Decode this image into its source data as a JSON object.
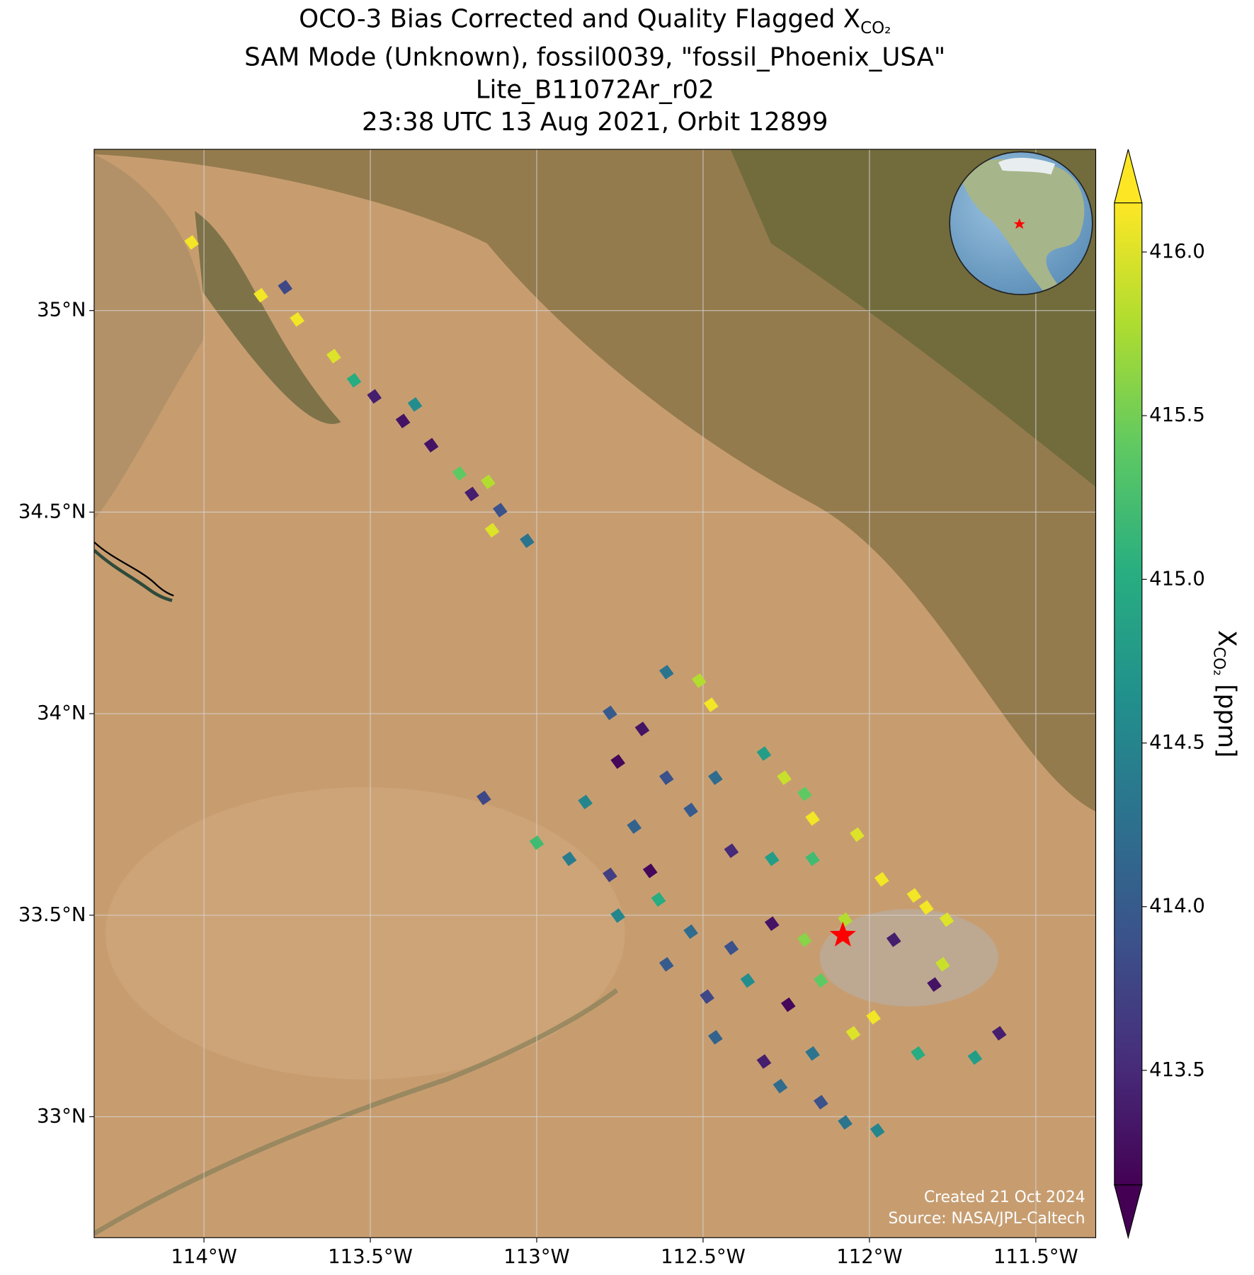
{
  "chart_data": {
    "type": "map",
    "title_lines": [
      "OCO-3 Bias Corrected and Quality Flagged X",
      "SAM Mode (Unknown), fossil0039, \"fossil_Phoenix_USA\"",
      "Lite_B11072Ar_r02",
      "23:38 UTC 13 Aug 2021, Orbit 12899"
    ],
    "title_subscript": "CO₂",
    "xlim": [
      -114.33,
      -111.32
    ],
    "ylim": [
      32.7,
      35.4
    ],
    "xticks": [
      {
        "value": -114,
        "label": "114°W"
      },
      {
        "value": -113.5,
        "label": "113.5°W"
      },
      {
        "value": -113,
        "label": "113°W"
      },
      {
        "value": -112.5,
        "label": "112.5°W"
      },
      {
        "value": -112,
        "label": "112°W"
      },
      {
        "value": -111.5,
        "label": "111.5°W"
      }
    ],
    "yticks": [
      {
        "value": 35,
        "label": "35°N"
      },
      {
        "value": 34.5,
        "label": "34.5°N"
      },
      {
        "value": 34,
        "label": "34°N"
      },
      {
        "value": 33.5,
        "label": "33.5°N"
      },
      {
        "value": 33,
        "label": "33°N"
      }
    ],
    "grid": true,
    "colormap": "viridis",
    "clim": [
      413.15,
      416.15
    ],
    "colorbar_ticks": [
      {
        "value": 416,
        "label": "416.0"
      },
      415.5,
      {
        "value": 415,
        "label": "415.0"
      },
      414.5,
      {
        "value": 414,
        "label": "414.0"
      },
      413.5
    ],
    "colorbar_label": "X",
    "colorbar_label_subscript": "CO₂",
    "colorbar_unit": "[ppm]",
    "target": {
      "lon": -112.08,
      "lat": 33.45,
      "color": "#ff0000"
    },
    "soundings": {
      "lon": [
        -114.037,
        -113.829,
        -113.72,
        -113.756,
        -113.61,
        -113.549,
        -113.488,
        -113.402,
        -113.366,
        -113.317,
        -113.232,
        -113.195,
        -113.146,
        -113.11,
        -113.134,
        -113.029,
        -112.78,
        -112.683,
        -112.61,
        -112.512,
        -112.476,
        -112.756,
        -112.61,
        -112.463,
        -112.317,
        -112.256,
        -112.195,
        -112.171,
        -112.037,
        -111.963,
        -111.866,
        -111.829,
        -111.768,
        -111.78,
        -111.927,
        -112.073,
        -113.0,
        -112.902,
        -112.78,
        -112.659,
        -112.854,
        -112.707,
        -112.537,
        -112.415,
        -112.293,
        -112.171,
        -112.756,
        -112.634,
        -112.537,
        -112.415,
        -112.293,
        -112.195,
        -112.61,
        -112.488,
        -112.366,
        -112.244,
        -112.146,
        -112.463,
        -112.317,
        -112.171,
        -112.049,
        -112.268,
        -112.146,
        -112.073,
        -111.976,
        -111.854,
        -111.683,
        -111.61,
        -111.805,
        -111.988,
        -113.159
      ],
      "lat": [
        35.169,
        35.038,
        34.978,
        35.058,
        34.887,
        34.827,
        34.787,
        34.726,
        34.767,
        34.666,
        34.596,
        34.545,
        34.575,
        34.505,
        34.455,
        34.429,
        34.002,
        33.962,
        34.103,
        34.082,
        34.022,
        33.881,
        33.841,
        33.841,
        33.901,
        33.841,
        33.801,
        33.74,
        33.7,
        33.589,
        33.549,
        33.519,
        33.489,
        33.378,
        33.439,
        33.489,
        33.68,
        33.64,
        33.6,
        33.61,
        33.781,
        33.72,
        33.761,
        33.66,
        33.64,
        33.64,
        33.499,
        33.539,
        33.459,
        33.419,
        33.479,
        33.439,
        33.378,
        33.298,
        33.338,
        33.278,
        33.338,
        33.197,
        33.137,
        33.157,
        33.207,
        33.076,
        33.036,
        32.986,
        32.966,
        33.157,
        33.147,
        33.207,
        33.328,
        33.247,
        33.791
      ],
      "values": [
        416.1,
        416.1,
        416.1,
        413.8,
        416.0,
        415.0,
        413.4,
        413.3,
        414.6,
        413.3,
        415.4,
        413.4,
        415.8,
        413.9,
        416.0,
        414.3,
        414.0,
        413.3,
        414.3,
        415.8,
        416.1,
        413.2,
        413.9,
        414.2,
        414.8,
        415.9,
        415.4,
        416.1,
        416.0,
        416.1,
        416.1,
        416.1,
        416.0,
        415.9,
        413.4,
        415.8,
        415.2,
        414.4,
        413.7,
        413.2,
        414.5,
        414.1,
        414.0,
        413.5,
        414.8,
        415.2,
        414.5,
        415.0,
        414.2,
        413.9,
        413.3,
        415.6,
        414.0,
        413.8,
        414.6,
        413.2,
        415.4,
        414.1,
        413.4,
        414.3,
        416.0,
        414.2,
        413.9,
        414.3,
        414.5,
        415.0,
        414.8,
        413.4,
        413.3,
        416.1,
        413.8
      ]
    },
    "credits": [
      "Created 21 Oct 2024",
      "Source: NASA/JPL-Caltech"
    ]
  }
}
